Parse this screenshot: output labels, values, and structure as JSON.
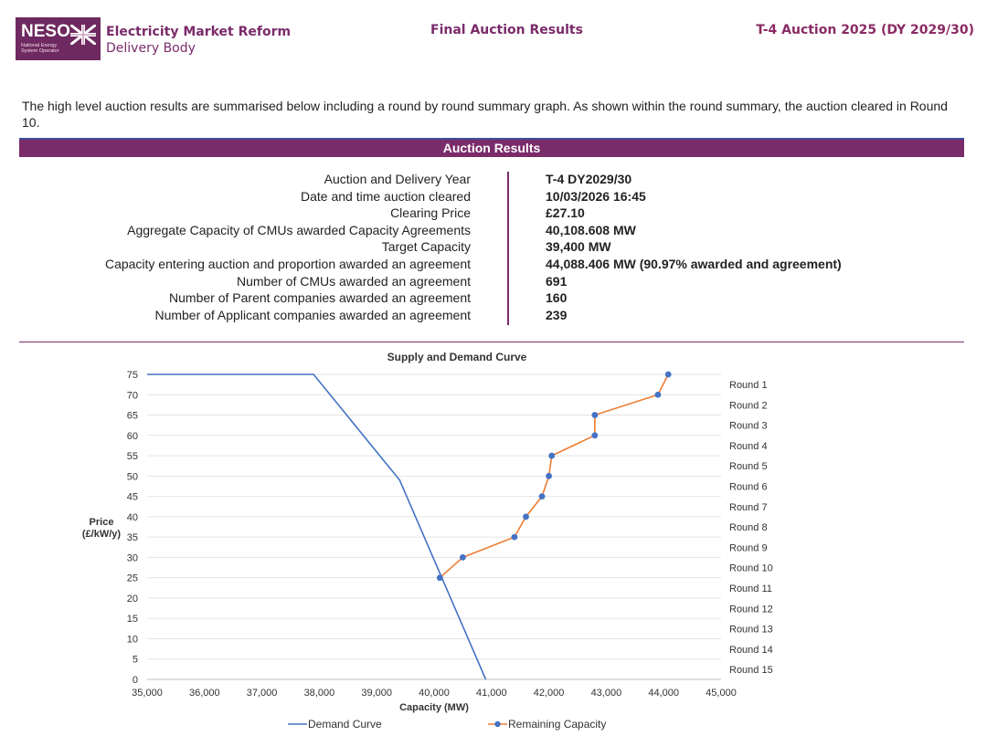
{
  "header": {
    "logo_text": "NESO",
    "logo_subtext": "National Energy System Operator",
    "org_line1": "Electricity Market Reform",
    "org_line2": "Delivery Body",
    "center_title": "Final Auction Results",
    "right_title": "T-4 Auction 2025 (DY 2029/30)"
  },
  "intro": "The high level auction results are summarised below including a round by round summary graph. As shown within the round summary, the auction cleared in Round 10.",
  "section_title": "Auction Results",
  "results": [
    {
      "label": "Auction and Delivery Year",
      "value": "T-4 DY2029/30"
    },
    {
      "label": "Date and time auction cleared",
      "value": "10/03/2026 16:45"
    },
    {
      "label": "Clearing Price",
      "value": "£27.10"
    },
    {
      "label": "Aggregate Capacity of CMUs awarded Capacity Agreements",
      "value": "40,108.608 MW"
    },
    {
      "label": "Target Capacity",
      "value": "39,400 MW"
    },
    {
      "label": "Capacity entering auction and proportion awarded an agreement",
      "value": "44,088.406 MW (90.97% awarded and agreement)"
    },
    {
      "label": "Number of CMUs awarded an agreement",
      "value": "691"
    },
    {
      "label": "Number of Parent companies awarded an agreement",
      "value": "160"
    },
    {
      "label": "Number of Applicant companies awarded an agreement",
      "value": "239"
    }
  ],
  "chart_data": {
    "type": "line",
    "title": "Supply and Demand Curve",
    "xlabel": "Capacity (MW)",
    "ylabel": "Price (£/kW/y)",
    "xlim": [
      35000,
      45000
    ],
    "ylim": [
      0,
      75
    ],
    "x_ticks": [
      "35,000",
      "36,000",
      "37,000",
      "38,000",
      "39,000",
      "40,000",
      "41,000",
      "42,000",
      "43,000",
      "44,000",
      "45,000"
    ],
    "y_ticks": [
      "0",
      "5",
      "10",
      "15",
      "20",
      "25",
      "30",
      "35",
      "40",
      "45",
      "50",
      "55",
      "60",
      "65",
      "70",
      "75"
    ],
    "series": [
      {
        "name": "Demand Curve",
        "color": "#4472c4",
        "markers": false,
        "x": [
          35000,
          37900,
          39400,
          40900
        ],
        "y": [
          75,
          75,
          49,
          0
        ]
      },
      {
        "name": "Remaining Capacity",
        "color": "#ed7d31",
        "marker_color": "#4472c4",
        "markers": true,
        "x": [
          44080,
          43900,
          42800,
          42800,
          42050,
          42000,
          41880,
          41600,
          41400,
          40500,
          40100
        ],
        "y": [
          75,
          70,
          65,
          60,
          55,
          50,
          45,
          40,
          35,
          30,
          25
        ]
      }
    ],
    "round_labels": [
      "Round 1",
      "Round 2",
      "Round 3",
      "Round 4",
      "Round 5",
      "Round 6",
      "Round 7",
      "Round 8",
      "Round 9",
      "Round 10",
      "Round 11",
      "Round 12",
      "Round 13",
      "Round 14",
      "Round 15"
    ],
    "legend": [
      "Demand Curve",
      "Remaining Capacity"
    ]
  }
}
